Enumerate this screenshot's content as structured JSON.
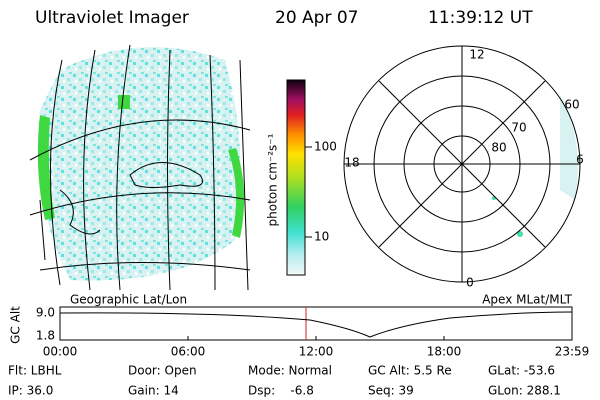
{
  "header": {
    "instrument": "Ultraviolet Imager",
    "date": "20 Apr 07",
    "time": "11:39:12 UT"
  },
  "colorbar": {
    "label": "photon cm⁻²s⁻¹",
    "ticks": [
      "100",
      "10"
    ]
  },
  "polar_plot": {
    "mlt_labels": [
      "12",
      "6",
      "0",
      "18"
    ],
    "mlat_labels": [
      "60",
      "70",
      "80"
    ]
  },
  "captions": {
    "left": "Geographic Lat/Lon",
    "right": "Apex MLat/MLT"
  },
  "altitude_plot": {
    "y_label": "GC Alt",
    "y_ticks": [
      "9.0",
      "1.8"
    ],
    "x_ticks": [
      "00:00",
      "06:00",
      "12:00",
      "18:00",
      "23:59"
    ]
  },
  "info": {
    "rows": [
      [
        "Flt: LBHL",
        "Door: Open",
        "Mode: Normal",
        "GC Alt: 5.5 Re",
        "GLat: -53.6"
      ],
      [
        "IP: 36.0",
        "Gain: 14",
        "Dsp:    -6.8",
        "Seq: 39",
        "GLon: 288.1"
      ]
    ]
  }
}
